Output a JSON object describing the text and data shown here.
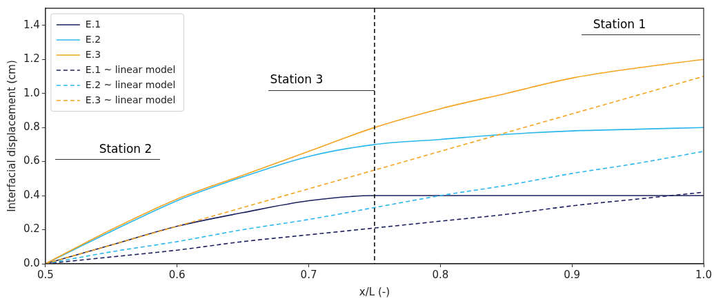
{
  "chart_data": {
    "type": "line",
    "xlabel": "x/L (-)",
    "ylabel": "Interfacial displacement (cm)",
    "xlim": [
      0.5,
      1.0
    ],
    "xticks": [
      0.5,
      0.6,
      0.7,
      0.8,
      0.9,
      {
        "value": 1,
        "label": "1.0"
      }
    ],
    "ylim": [
      0,
      1.5
    ],
    "yticks": [
      {
        "value": 0,
        "label": "0.0"
      },
      0.2,
      0.4,
      0.6,
      0.8,
      {
        "value": 1,
        "label": "1.0"
      },
      1.2,
      1.4
    ],
    "grid": false,
    "legend": "top left",
    "marker": "none",
    "x": [
      0.5,
      0.55,
      0.6,
      0.65,
      0.7,
      0.75,
      0.8,
      0.85,
      0.9,
      0.95,
      1.0
    ],
    "series": [
      {
        "name": "E.1",
        "color": "#1a1f5e",
        "line_style": "solid",
        "values": [
          0,
          0.11,
          0.22,
          0.3,
          0.37,
          0.4,
          0.4,
          0.4,
          0.4,
          0.4,
          0.4
        ]
      },
      {
        "name": "E.2",
        "color": "#29b6ee",
        "line_style": "solid",
        "values": [
          0,
          0.19,
          0.37,
          0.51,
          0.63,
          0.7,
          0.73,
          0.76,
          0.78,
          0.79,
          0.8
        ]
      },
      {
        "name": "E.3",
        "color": "#f5a21e",
        "line_style": "solid",
        "values": [
          0,
          0.2,
          0.38,
          0.52,
          0.66,
          0.8,
          0.91,
          1.0,
          1.09,
          1.15,
          1.2
        ]
      },
      {
        "name": "E.1 ~ linear model",
        "color": "#1a1f5e",
        "line_style": "dashed",
        "values": [
          0,
          0.04,
          0.08,
          0.13,
          0.17,
          0.21,
          0.25,
          0.29,
          0.34,
          0.38,
          0.42
        ]
      },
      {
        "name": "E.2 ~ linear model",
        "color": "#29b6ee",
        "line_style": "dashed",
        "values": [
          0,
          0.07,
          0.13,
          0.2,
          0.26,
          0.33,
          0.4,
          0.46,
          0.53,
          0.59,
          0.66
        ]
      },
      {
        "name": "E.3 ~ linear model",
        "color": "#f5a21e",
        "line_style": "dashed",
        "values": [
          0,
          0.11,
          0.22,
          0.33,
          0.44,
          0.55,
          0.66,
          0.77,
          0.88,
          0.99,
          1.1
        ]
      }
    ],
    "ref_lines": [
      {
        "axis": "x",
        "value": 0.75,
        "color": "#000000",
        "line_style": "dashed"
      }
    ],
    "annotations": [
      "Station 2",
      {
        "text": "Station 3",
        "x": 0.75,
        "y": 1.02
      },
      "Station 1"
    ]
  }
}
